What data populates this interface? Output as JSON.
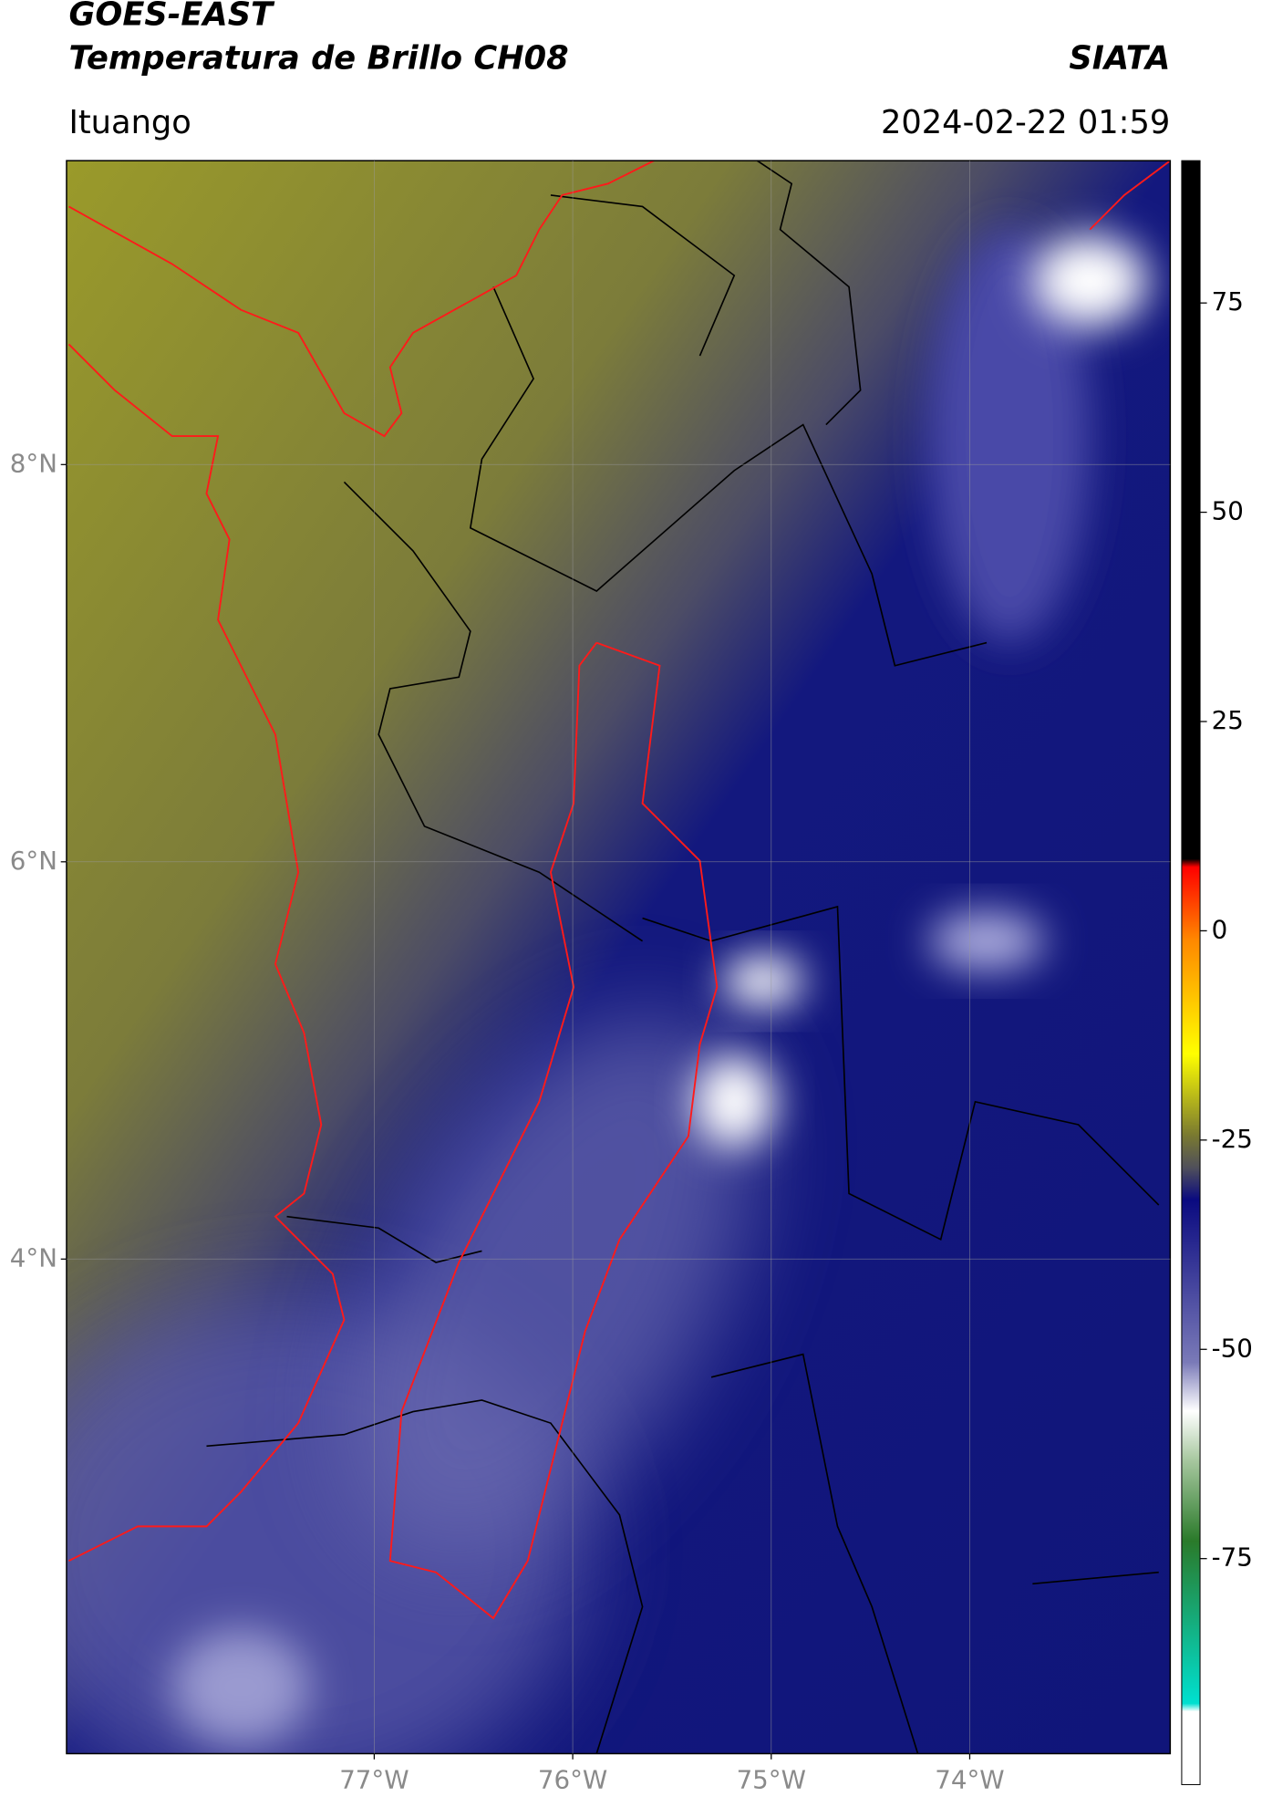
{
  "header": {
    "title": "GOES-EAST",
    "subtitle": "Temperatura de Brillo CH08",
    "agency": "SIATA",
    "location": "Ituango",
    "datetime": "2024-02-22 01:59"
  },
  "map": {
    "lon_range": [
      -78.55,
      -72.99
    ],
    "lat_range": [
      1.51,
      9.53
    ],
    "xticks": [
      {
        "value": -77,
        "label": "77°W"
      },
      {
        "value": -76,
        "label": "76°W"
      },
      {
        "value": -75,
        "label": "75°W"
      },
      {
        "value": -74,
        "label": "74°W"
      }
    ],
    "yticks": [
      {
        "value": 8,
        "label": "8°N"
      },
      {
        "value": 6,
        "label": "6°N"
      },
      {
        "value": 4,
        "label": "4°N"
      }
    ],
    "grid": true
  },
  "colorbar": {
    "range": [
      -102,
      92
    ],
    "ticks": [
      75,
      50,
      25,
      0,
      -25,
      -50,
      -75
    ]
  }
}
